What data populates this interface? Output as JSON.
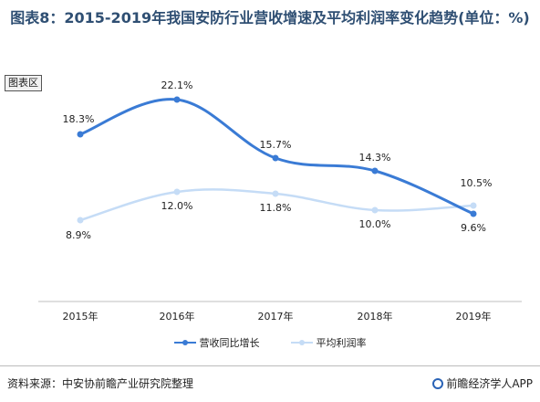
{
  "title": "图表8：2015-2019年我国安防行业营收增速及平均利润率变化趋势(单位：%)",
  "chip": "图表区",
  "source": "资料来源：中安协前瞻产业研究院整理",
  "brand": "前瞻经济学人APP",
  "chart_data": {
    "type": "line",
    "categories": [
      "2015年",
      "2016年",
      "2017年",
      "2018年",
      "2019年"
    ],
    "series": [
      {
        "name": "营收同比增长",
        "values": [
          18.3,
          22.1,
          15.7,
          14.3,
          9.6
        ],
        "color": "#3a7bd5"
      },
      {
        "name": "平均利润率",
        "values": [
          8.9,
          12.0,
          11.8,
          10.0,
          10.5
        ],
        "color": "#c5dcf6"
      }
    ],
    "data_labels": {
      "营收同比增长": [
        "18.3%",
        "22.1%",
        "15.7%",
        "14.3%",
        "9.6%"
      ],
      "平均利润率": [
        "8.9%",
        "12.0%",
        "11.8%",
        "10.0%",
        "10.5%"
      ]
    },
    "ylim": [
      0,
      25
    ],
    "grid": false,
    "legend": "bottom"
  }
}
